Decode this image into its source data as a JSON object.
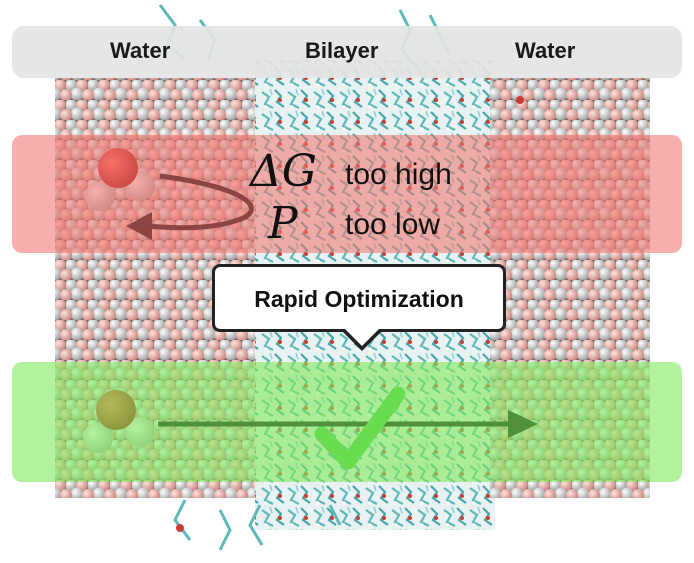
{
  "labels": {
    "water_left": "Water",
    "bilayer": "Bilayer",
    "water_right": "Water"
  },
  "problem": {
    "delta_g_symbol": "ΔG",
    "delta_g_text": "too high",
    "p_symbol": "P",
    "p_text": "too low"
  },
  "callout": {
    "text": "Rapid Optimization"
  },
  "colors": {
    "problem_band": "#f07670",
    "solution_band": "#84ea60",
    "checkmark": "#3fc63a",
    "oxygen": "#d8231a",
    "hydrogen": "#f2f2f2",
    "lipid": "#5fb8b8",
    "header": "#e4e4e4"
  },
  "icons": [
    "water-molecule-icon",
    "curved-arrow-icon",
    "straight-arrow-icon",
    "checkmark-icon"
  ]
}
